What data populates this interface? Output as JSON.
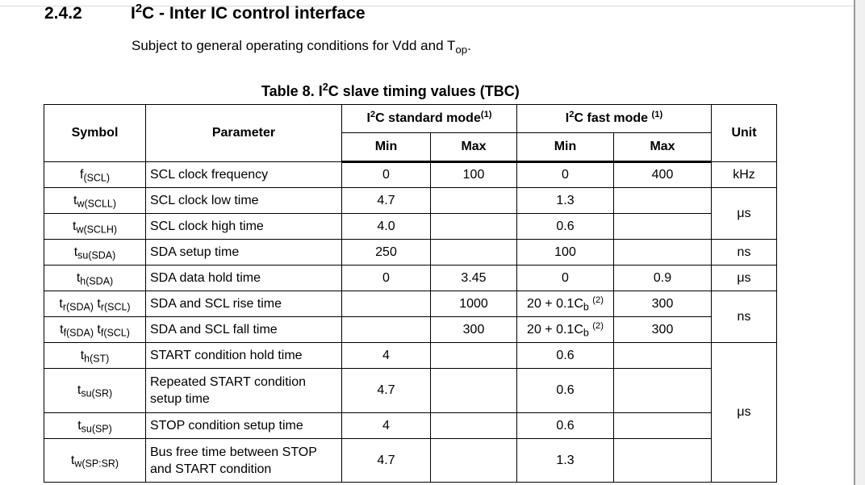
{
  "section": {
    "number": "2.4.2",
    "title_prefix": "I",
    "title_sup": "2",
    "title_suffix": "C - Inter IC control interface",
    "subject_text": "Subject to general operating conditions for Vdd and T",
    "subject_sub": "op",
    "subject_end": "."
  },
  "table": {
    "caption_prefix": "Table 8. I",
    "caption_sup": "2",
    "caption_suffix": "C slave timing values (TBC)",
    "headers": {
      "symbol": "Symbol",
      "parameter": "Parameter",
      "std_prefix": "I",
      "std_sup": "2",
      "std_suffix": "C standard mode",
      "std_note": "(1)",
      "fast_prefix": "I",
      "fast_sup": "2",
      "fast_suffix": "C fast mode ",
      "fast_note": "(1)",
      "unit": "Unit",
      "min": "Min",
      "max": "Max"
    },
    "rows": [
      {
        "sym_base": "f",
        "sym_sub": "(SCL)",
        "param": "SCL clock frequency",
        "std_min": "0",
        "std_max": "100",
        "fast_min": "0",
        "fast_max": "400",
        "unit": "kHz"
      },
      {
        "sym_base": "t",
        "sym_sub": "w(SCLL)",
        "param": "SCL clock low time",
        "std_min": "4.7",
        "std_max": "",
        "fast_min": "1.3",
        "fast_max": "",
        "unit": "μs"
      },
      {
        "sym_base": "t",
        "sym_sub": "w(SCLH)",
        "param": "SCL clock high time",
        "std_min": "4.0",
        "std_max": "",
        "fast_min": "0.6",
        "fast_max": ""
      },
      {
        "sym_base": "t",
        "sym_sub": "su(SDA)",
        "param": "SDA setup time",
        "std_min": "250",
        "std_max": "",
        "fast_min": "100",
        "fast_max": "",
        "unit": "ns"
      },
      {
        "sym_base": "t",
        "sym_sub": "h(SDA)",
        "param": "SDA data hold time",
        "std_min": "0",
        "std_max": "3.45",
        "fast_min": "0",
        "fast_max": "0.9",
        "unit": "μs"
      },
      {
        "sym_base": "t",
        "sym_sub": "r(SDA)",
        "sym_base2": " t",
        "sym_sub2": "r(SCL)",
        "param": "SDA and SCL rise time",
        "std_min": "",
        "std_max": "1000",
        "fast_min_text": "20 + 0.1C",
        "fast_min_sub": "b",
        "fast_min_note": "(2)",
        "fast_max": "300",
        "unit": "ns"
      },
      {
        "sym_base": "t",
        "sym_sub": "f(SDA)",
        "sym_base2": " t",
        "sym_sub2": "f(SCL)",
        "param": "SDA and SCL fall time",
        "std_min": "",
        "std_max": "300",
        "fast_min_text": "20 + 0.1C",
        "fast_min_sub": "b",
        "fast_min_note": "(2)",
        "fast_max": "300"
      },
      {
        "sym_base": "t",
        "sym_sub": "h(ST)",
        "param": "START condition hold time",
        "std_min": "4",
        "std_max": "",
        "fast_min": "0.6",
        "fast_max": "",
        "unit": "μs"
      },
      {
        "sym_base": "t",
        "sym_sub": "su(SR)",
        "param_line1": "Repeated START condition",
        "param_line2": "setup time",
        "std_min": "4.7",
        "std_max": "",
        "fast_min": "0.6",
        "fast_max": ""
      },
      {
        "sym_base": "t",
        "sym_sub": "su(SP)",
        "param": "STOP condition setup time",
        "std_min": "4",
        "std_max": "",
        "fast_min": "0.6",
        "fast_max": ""
      },
      {
        "sym_base": "t",
        "sym_sub": "w(SP:SR)",
        "param_line1": "Bus free time between STOP",
        "param_line2": "and START condition",
        "std_min": "4.7",
        "std_max": "",
        "fast_min": "1.3",
        "fast_max": ""
      }
    ]
  }
}
